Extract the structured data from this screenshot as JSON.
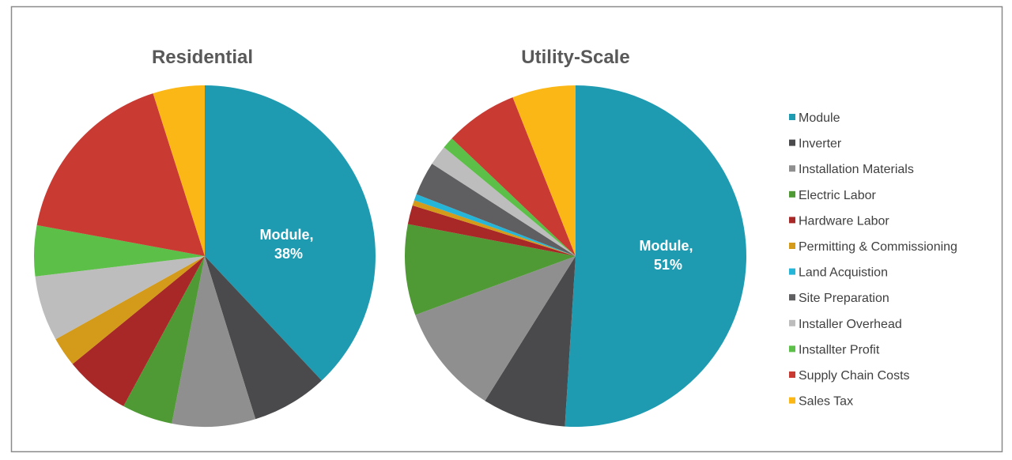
{
  "chart_data": [
    {
      "type": "pie",
      "title": "Residential",
      "categories": [
        "Module",
        "Inverter",
        "Installation Materials",
        "Electric Labor",
        "Hardware Labor",
        "Permitting & Commissioning",
        "Land Acquistion",
        "Site Preparation",
        "Installer Overhead",
        "Installter Profit",
        "Supply Chain Costs",
        "Sales Tax"
      ],
      "values": [
        38,
        7.2,
        7.9,
        4.8,
        6.2,
        2.8,
        0,
        0,
        6.2,
        4.8,
        17.2,
        4.9
      ],
      "data_labels": [
        {
          "category": "Module",
          "text_line1": "Module,",
          "text_line2": "38%"
        }
      ]
    },
    {
      "type": "pie",
      "title": "Utility-Scale",
      "categories": [
        "Module",
        "Inverter",
        "Installation Materials",
        "Electric Labor",
        "Hardware Labor",
        "Permitting & Commissioning",
        "Land Acquistion",
        "Site Preparation",
        "Installer Overhead",
        "Installter Profit",
        "Supply Chain Costs",
        "Sales Tax"
      ],
      "values": [
        51,
        7.9,
        10.5,
        8.6,
        1.8,
        0.5,
        0.6,
        3.2,
        1.9,
        1.1,
        6.9,
        6.0
      ],
      "data_labels": [
        {
          "category": "Module",
          "text_line1": "Module,",
          "text_line2": "51%"
        }
      ]
    }
  ],
  "legend": {
    "placement": "right",
    "entries": [
      "Module",
      "Inverter",
      "Installation Materials",
      "Electric Labor",
      "Hardware Labor",
      "Permitting & Commissioning",
      "Land Acquistion",
      "Site Preparation",
      "Installer Overhead",
      "Installter Profit",
      "Supply Chain Costs",
      "Sales Tax"
    ]
  },
  "colors": [
    "#1f9bb1",
    "#4a4a4c",
    "#8f8f8f",
    "#4f9a35",
    "#a82828",
    "#d49a1a",
    "#25b5d8",
    "#5f5f61",
    "#bdbdbd",
    "#5cbf48",
    "#c83a32",
    "#fbb716"
  ]
}
